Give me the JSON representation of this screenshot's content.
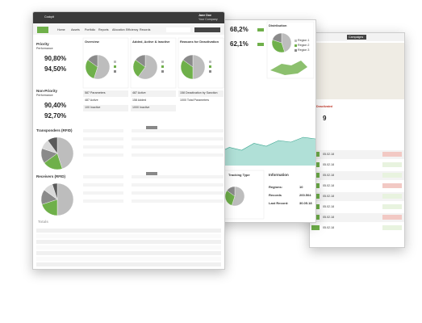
{
  "front": {
    "header": {
      "app": "Cockpit",
      "user": "Jane Doe",
      "company": "Your Company"
    },
    "nav": [
      "Home",
      "Assets",
      "Portfolio",
      "Reports",
      "Allocation",
      "Efficiency",
      "Records"
    ],
    "priority": {
      "title": "Priority",
      "subtitle": "Performance",
      "values": [
        "90,80%",
        "94,50%"
      ]
    },
    "non_priority": {
      "title": "Non-Priority",
      "subtitle": "Performance",
      "values": [
        "90,40%",
        "92,70%"
      ]
    },
    "overview": {
      "title": "Overview",
      "slices": [
        55,
        30,
        15
      ],
      "rows": [
        "587 Parameters",
        "487 Active",
        "100 Inactive"
      ]
    },
    "added": {
      "title": "Added, Active & Inactive",
      "slices": [
        60,
        25,
        15
      ],
      "rows": [
        "487 Active",
        "158 Added",
        "1000 Inactive"
      ]
    },
    "reasons": {
      "title": "Reasons for Deactivation",
      "slices": [
        50,
        35,
        15
      ],
      "rows": [
        "158 Deactivation by Sanction",
        "1000 Total Parameters"
      ]
    },
    "transponders": {
      "title": "Transponders (RFID)",
      "slices": [
        45,
        20,
        15,
        10,
        10
      ]
    },
    "receivers": {
      "title": "Receivers (RFID)",
      "slices": [
        50,
        20,
        15,
        10,
        5
      ]
    },
    "totals": "Totals"
  },
  "middle": {
    "kpis": [
      "68,2%",
      "62,1%"
    ],
    "distribution": {
      "title": "Distribution",
      "slices": [
        45,
        35,
        20
      ],
      "legend": [
        "Region 1",
        "Region 2",
        "Region 3"
      ]
    },
    "area": {
      "values": [
        30,
        45,
        38,
        55,
        48,
        62,
        58,
        70,
        66
      ],
      "ylim": [
        0,
        100
      ]
    },
    "tracking": {
      "title": "Tracking Type",
      "slices": [
        55,
        30,
        15
      ]
    },
    "information": {
      "title": "Information",
      "rows": [
        [
          "Regions:",
          "10"
        ],
        [
          "Records",
          "200.504"
        ],
        [
          "Last Record:",
          "30.05.18"
        ]
      ]
    }
  },
  "back": {
    "button": "Campaigns",
    "card_title": "Deactivated",
    "card_value": "9",
    "rows": [
      "05.02.18",
      "05.02.18",
      "05.02.18",
      "05.02.18",
      "05.02.18",
      "05.02.18",
      "05.02.18",
      "05.02.18"
    ]
  }
}
